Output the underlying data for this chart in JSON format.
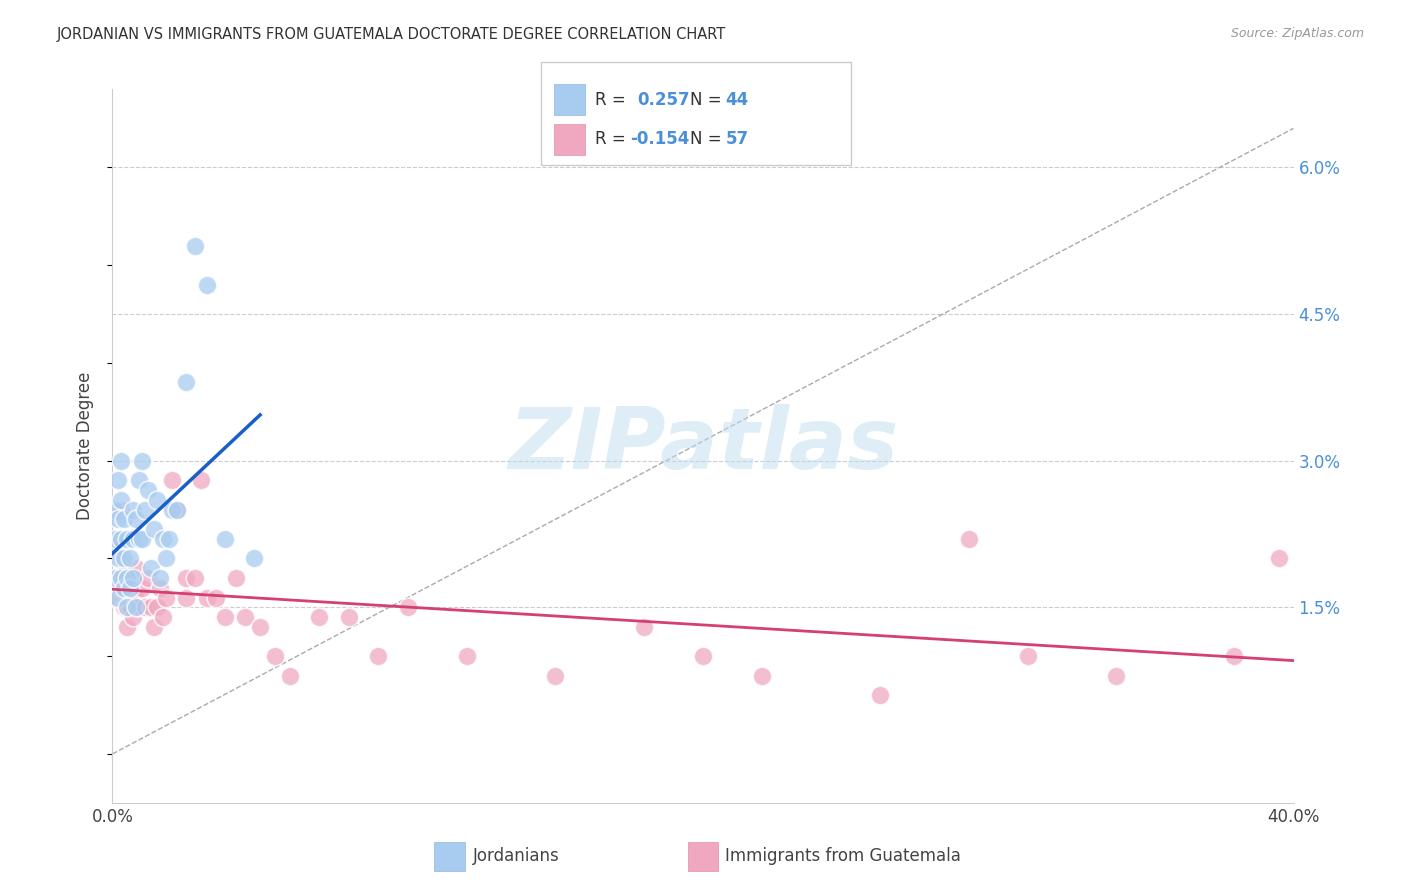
{
  "title": "JORDANIAN VS IMMIGRANTS FROM GUATEMALA DOCTORATE DEGREE CORRELATION CHART",
  "source": "Source: ZipAtlas.com",
  "ylabel": "Doctorate Degree",
  "xlim": [
    0.0,
    0.4
  ],
  "ylim": [
    -0.005,
    0.068
  ],
  "yticks": [
    0.015,
    0.03,
    0.045,
    0.06
  ],
  "ytick_labels": [
    "1.5%",
    "3.0%",
    "4.5%",
    "6.0%"
  ],
  "xtick_labels": [
    "0.0%",
    "40.0%"
  ],
  "xtick_pos": [
    0.0,
    0.4
  ],
  "legend1_R": "0.257",
  "legend1_N": "44",
  "legend2_R": "-0.154",
  "legend2_N": "57",
  "blue_color": "#A8CCF0",
  "pink_color": "#F0A8C0",
  "blue_line_color": "#1A5FC8",
  "pink_line_color": "#D44070",
  "grid_color": "#CCCCCC",
  "ref_line_color": "#AAAAAA",
  "blue_x": [
    0.001,
    0.001,
    0.001,
    0.002,
    0.002,
    0.002,
    0.002,
    0.003,
    0.003,
    0.003,
    0.003,
    0.004,
    0.004,
    0.004,
    0.005,
    0.005,
    0.005,
    0.006,
    0.006,
    0.007,
    0.007,
    0.007,
    0.008,
    0.008,
    0.009,
    0.009,
    0.01,
    0.01,
    0.011,
    0.012,
    0.013,
    0.014,
    0.015,
    0.016,
    0.017,
    0.018,
    0.019,
    0.02,
    0.022,
    0.025,
    0.028,
    0.032,
    0.038,
    0.048
  ],
  "blue_y": [
    0.025,
    0.022,
    0.018,
    0.028,
    0.024,
    0.02,
    0.016,
    0.03,
    0.026,
    0.022,
    0.018,
    0.024,
    0.02,
    0.017,
    0.022,
    0.018,
    0.015,
    0.02,
    0.017,
    0.025,
    0.022,
    0.018,
    0.024,
    0.015,
    0.028,
    0.022,
    0.03,
    0.022,
    0.025,
    0.027,
    0.019,
    0.023,
    0.026,
    0.018,
    0.022,
    0.02,
    0.022,
    0.025,
    0.025,
    0.038,
    0.052,
    0.048,
    0.022,
    0.02
  ],
  "pink_x": [
    0.001,
    0.001,
    0.002,
    0.002,
    0.003,
    0.003,
    0.003,
    0.004,
    0.004,
    0.005,
    0.005,
    0.005,
    0.006,
    0.006,
    0.007,
    0.007,
    0.008,
    0.008,
    0.009,
    0.01,
    0.011,
    0.012,
    0.013,
    0.014,
    0.015,
    0.016,
    0.017,
    0.018,
    0.02,
    0.022,
    0.025,
    0.025,
    0.028,
    0.03,
    0.032,
    0.035,
    0.038,
    0.042,
    0.045,
    0.05,
    0.055,
    0.06,
    0.07,
    0.08,
    0.09,
    0.1,
    0.12,
    0.15,
    0.18,
    0.2,
    0.22,
    0.26,
    0.29,
    0.31,
    0.34,
    0.38,
    0.395
  ],
  "pink_y": [
    0.018,
    0.016,
    0.022,
    0.018,
    0.025,
    0.02,
    0.017,
    0.018,
    0.015,
    0.019,
    0.015,
    0.013,
    0.018,
    0.015,
    0.016,
    0.014,
    0.019,
    0.016,
    0.015,
    0.017,
    0.015,
    0.018,
    0.015,
    0.013,
    0.015,
    0.017,
    0.014,
    0.016,
    0.028,
    0.025,
    0.018,
    0.016,
    0.018,
    0.028,
    0.016,
    0.016,
    0.014,
    0.018,
    0.014,
    0.013,
    0.01,
    0.008,
    0.014,
    0.014,
    0.01,
    0.015,
    0.01,
    0.008,
    0.013,
    0.01,
    0.008,
    0.006,
    0.022,
    0.01,
    0.008,
    0.01,
    0.02
  ]
}
